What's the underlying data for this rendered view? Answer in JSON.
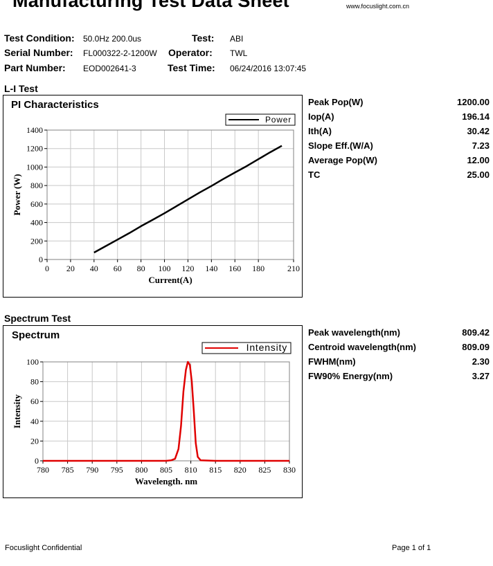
{
  "document": {
    "title": "Manufacturing Test Data Sheet",
    "website": "www.focuslight.com.cn"
  },
  "header": {
    "test_condition_label": "Test Condition:",
    "test_condition_value": "50.0Hz 200.0us",
    "test_label": "Test:",
    "test_value": "ABI",
    "serial_number_label": "Serial Number:",
    "serial_number_value": "FL000322-2-1200W",
    "operator_label": "Operator:",
    "operator_value": "TWL",
    "part_number_label": "Part Number:",
    "part_number_value": "EOD002641-3",
    "test_time_label": "Test Time:",
    "test_time_value": "06/24/2016 13:07:45"
  },
  "li_test": {
    "section_title": "L-I Test",
    "metrics": [
      {
        "label": "Peak Pop(W)",
        "value": "1200.00"
      },
      {
        "label": "Iop(A)",
        "value": "196.14"
      },
      {
        "label": "Ith(A)",
        "value": "30.42"
      },
      {
        "label": "Slope Eff.(W/A)",
        "value": "7.23"
      },
      {
        "label": "Average Pop(W)",
        "value": "12.00"
      },
      {
        "label": "TC",
        "value": "25.00"
      }
    ]
  },
  "spectrum_test": {
    "section_title": "Spectrum Test",
    "metrics": [
      {
        "label": "Peak wavelength(nm)",
        "value": "809.42"
      },
      {
        "label": "Centroid wavelength(nm)",
        "value": "809.09"
      },
      {
        "label": "FWHM(nm)",
        "value": "2.30"
      },
      {
        "label": "FW90% Energy(nm)",
        "value": "3.27"
      }
    ]
  },
  "chart_data": [
    {
      "type": "line",
      "title": "PI Characteristics",
      "xlabel": "Current(A)",
      "ylabel": "Power (W)",
      "xlim": [
        0,
        210
      ],
      "ylim": [
        0,
        1400
      ],
      "xticks": [
        0,
        20,
        40,
        60,
        80,
        100,
        120,
        140,
        160,
        180,
        210
      ],
      "yticks": [
        0,
        200,
        400,
        600,
        800,
        1000,
        1200,
        1400
      ],
      "grid": true,
      "legend_position": "top-right",
      "series": [
        {
          "name": "Power",
          "color": "#000000",
          "x": [
            40,
            50,
            60,
            70,
            80,
            90,
            100,
            110,
            120,
            130,
            140,
            150,
            160,
            170,
            180,
            190,
            200
          ],
          "y": [
            75,
            145,
            215,
            285,
            360,
            430,
            500,
            575,
            650,
            725,
            795,
            870,
            940,
            1010,
            1085,
            1160,
            1230
          ]
        }
      ]
    },
    {
      "type": "line",
      "title": "Spectrum",
      "xlabel": "Wavelength. nm",
      "ylabel": "Intensity",
      "xlim": [
        780,
        830
      ],
      "ylim": [
        0,
        100
      ],
      "xticks": [
        780,
        785,
        790,
        795,
        800,
        805,
        810,
        815,
        820,
        825,
        830
      ],
      "yticks": [
        0,
        20,
        40,
        60,
        80,
        100
      ],
      "grid": true,
      "legend_position": "top-right",
      "series": [
        {
          "name": "Intensity",
          "color": "#e00000",
          "x": [
            780,
            800,
            805,
            806,
            806.8,
            807.5,
            808,
            808.5,
            809,
            809.4,
            809.8,
            810.2,
            810.6,
            811,
            811.4,
            812,
            815,
            830
          ],
          "y": [
            0,
            0,
            0,
            0.5,
            2,
            12,
            35,
            70,
            92,
            100,
            97,
            80,
            50,
            18,
            4,
            0.5,
            0,
            0
          ]
        }
      ]
    }
  ],
  "footer": {
    "confidential": "Focuslight Confidential",
    "page": "Page 1 of 1"
  }
}
